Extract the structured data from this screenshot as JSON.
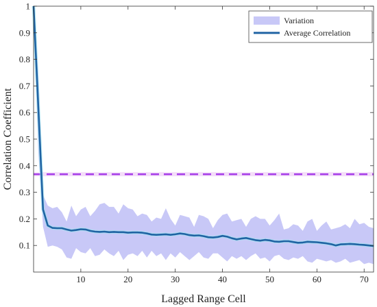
{
  "chart_data": {
    "type": "line",
    "xlabel": "Lagged Range Cell",
    "ylabel": "Correlation Coefficient",
    "xlim": [
      0,
      72
    ],
    "ylim": [
      0,
      1
    ],
    "x_ticks": [
      10,
      20,
      30,
      40,
      50,
      60,
      70
    ],
    "y_ticks": [
      0.1,
      0.2,
      0.3,
      0.4,
      0.5,
      0.6,
      0.7,
      0.8,
      0.9,
      1
    ],
    "y_tick_labels": [
      "0.1",
      "0.2",
      "0.3",
      "0.4",
      "0.5",
      "0.6",
      "0.7",
      "0.8",
      "0.9",
      "1"
    ],
    "grid": false,
    "legend_position": "top-right",
    "legend": [
      {
        "label": "Variation",
        "kind": "band",
        "color": "#c8c8f7"
      },
      {
        "label": "Average Correlation",
        "kind": "line",
        "color": "#1f63a3"
      }
    ],
    "threshold": {
      "y": 0.368,
      "style": "dashed",
      "color": "#a43be8"
    },
    "series": [
      {
        "name": "Average Correlation",
        "x": [
          0,
          1,
          2,
          3,
          4,
          5,
          6,
          7,
          8,
          9,
          10,
          11,
          12,
          13,
          14,
          15,
          16,
          17,
          18,
          19,
          20,
          21,
          22,
          23,
          24,
          25,
          26,
          27,
          28,
          29,
          30,
          31,
          32,
          33,
          34,
          35,
          36,
          37,
          38,
          39,
          40,
          41,
          42,
          43,
          44,
          45,
          46,
          47,
          48,
          49,
          50,
          51,
          52,
          53,
          54,
          55,
          56,
          57,
          58,
          59,
          60,
          61,
          62,
          63,
          64,
          65,
          66,
          67,
          68,
          69,
          70,
          71,
          72
        ],
        "y": [
          1.0,
          0.62,
          0.235,
          0.175,
          0.166,
          0.165,
          0.165,
          0.16,
          0.156,
          0.158,
          0.161,
          0.16,
          0.155,
          0.152,
          0.151,
          0.152,
          0.15,
          0.151,
          0.15,
          0.15,
          0.148,
          0.149,
          0.149,
          0.148,
          0.145,
          0.141,
          0.14,
          0.141,
          0.142,
          0.14,
          0.142,
          0.145,
          0.143,
          0.139,
          0.137,
          0.138,
          0.135,
          0.131,
          0.13,
          0.132,
          0.136,
          0.133,
          0.127,
          0.123,
          0.126,
          0.128,
          0.124,
          0.12,
          0.118,
          0.121,
          0.119,
          0.115,
          0.114,
          0.116,
          0.116,
          0.113,
          0.11,
          0.111,
          0.114,
          0.113,
          0.112,
          0.11,
          0.108,
          0.105,
          0.1,
          0.104,
          0.105,
          0.106,
          0.105,
          0.103,
          0.102,
          0.1,
          0.098
        ]
      },
      {
        "name": "Variation upper",
        "x": [
          0,
          1,
          2,
          3,
          4,
          5,
          6,
          7,
          8,
          9,
          10,
          11,
          12,
          13,
          14,
          15,
          16,
          17,
          18,
          19,
          20,
          21,
          22,
          23,
          24,
          25,
          26,
          27,
          28,
          29,
          30,
          31,
          32,
          33,
          34,
          35,
          36,
          37,
          38,
          39,
          40,
          41,
          42,
          43,
          44,
          45,
          46,
          47,
          48,
          49,
          50,
          51,
          52,
          53,
          54,
          55,
          56,
          57,
          58,
          59,
          60,
          61,
          62,
          63,
          64,
          65,
          66,
          67,
          68,
          69,
          70,
          71,
          72
        ],
        "y": [
          1.0,
          0.75,
          0.29,
          0.25,
          0.24,
          0.245,
          0.225,
          0.19,
          0.25,
          0.21,
          0.235,
          0.245,
          0.21,
          0.23,
          0.255,
          0.26,
          0.245,
          0.245,
          0.22,
          0.255,
          0.24,
          0.235,
          0.21,
          0.22,
          0.215,
          0.19,
          0.205,
          0.2,
          0.24,
          0.2,
          0.175,
          0.215,
          0.21,
          0.205,
          0.17,
          0.215,
          0.21,
          0.2,
          0.165,
          0.195,
          0.215,
          0.22,
          0.19,
          0.195,
          0.2,
          0.17,
          0.2,
          0.21,
          0.2,
          0.2,
          0.175,
          0.195,
          0.22,
          0.16,
          0.165,
          0.18,
          0.175,
          0.155,
          0.19,
          0.2,
          0.155,
          0.175,
          0.19,
          0.16,
          0.165,
          0.17,
          0.18,
          0.165,
          0.2,
          0.18,
          0.185,
          0.17,
          0.165
        ]
      },
      {
        "name": "Variation lower",
        "x": [
          0,
          1,
          2,
          3,
          4,
          5,
          6,
          7,
          8,
          9,
          10,
          11,
          12,
          13,
          14,
          15,
          16,
          17,
          18,
          19,
          20,
          21,
          22,
          23,
          24,
          25,
          26,
          27,
          28,
          29,
          30,
          31,
          32,
          33,
          34,
          35,
          36,
          37,
          38,
          39,
          40,
          41,
          42,
          43,
          44,
          45,
          46,
          47,
          48,
          49,
          50,
          51,
          52,
          53,
          54,
          55,
          56,
          57,
          58,
          59,
          60,
          61,
          62,
          63,
          64,
          65,
          66,
          67,
          68,
          69,
          70,
          71,
          72
        ],
        "y": [
          1.0,
          0.45,
          0.17,
          0.095,
          0.1,
          0.095,
          0.085,
          0.055,
          0.05,
          0.09,
          0.075,
          0.07,
          0.09,
          0.06,
          0.065,
          0.085,
          0.07,
          0.06,
          0.08,
          0.045,
          0.065,
          0.07,
          0.06,
          0.08,
          0.055,
          0.08,
          0.06,
          0.07,
          0.045,
          0.07,
          0.055,
          0.075,
          0.06,
          0.045,
          0.06,
          0.075,
          0.055,
          0.05,
          0.07,
          0.07,
          0.055,
          0.04,
          0.06,
          0.05,
          0.06,
          0.045,
          0.06,
          0.07,
          0.05,
          0.055,
          0.04,
          0.06,
          0.065,
          0.05,
          0.045,
          0.055,
          0.05,
          0.06,
          0.04,
          0.035,
          0.05,
          0.045,
          0.04,
          0.045,
          0.035,
          0.04,
          0.05,
          0.035,
          0.04,
          0.045,
          0.03,
          0.035,
          0.03
        ]
      }
    ]
  }
}
